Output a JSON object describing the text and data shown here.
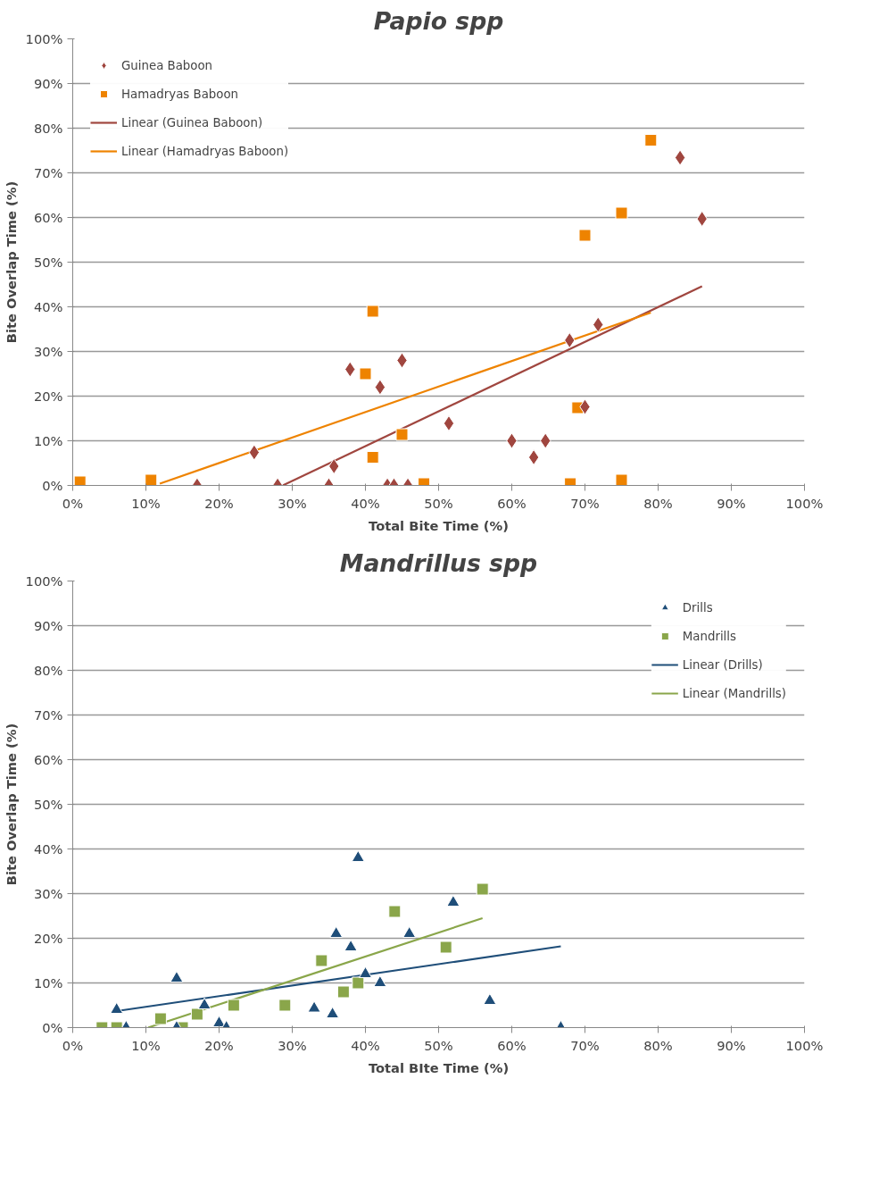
{
  "chart_data": [
    {
      "type": "scatter",
      "title": "Papio spp",
      "xlabel": "Total Bite Time (%)",
      "ylabel": "Bite Overlap Time (%)",
      "xlim": [
        0,
        100
      ],
      "ylim": [
        0,
        100
      ],
      "xticks": [
        {
          "value": 0,
          "label": "0%"
        },
        {
          "value": 10,
          "label": "10%"
        },
        {
          "value": 20,
          "label": "20%"
        },
        {
          "value": 30,
          "label": "30%"
        },
        {
          "value": 40,
          "label": "40%"
        },
        {
          "value": 50,
          "label": "50%"
        },
        {
          "value": 60,
          "label": "60%"
        },
        {
          "value": 70,
          "label": "70%"
        },
        {
          "value": 80,
          "label": "80%"
        },
        {
          "value": 90,
          "label": "90%"
        },
        {
          "value": 100,
          "label": "100%"
        }
      ],
      "yticks": [
        {
          "value": 0,
          "label": "0%"
        },
        {
          "value": 10,
          "label": "10%"
        },
        {
          "value": 20,
          "label": "20%"
        },
        {
          "value": 30,
          "label": "30%"
        },
        {
          "value": 40,
          "label": "40%"
        },
        {
          "value": 50,
          "label": "50%"
        },
        {
          "value": 60,
          "label": "60%"
        },
        {
          "value": 70,
          "label": "70%"
        },
        {
          "value": 80,
          "label": "80%"
        },
        {
          "value": 90,
          "label": "90%"
        },
        {
          "value": 100,
          "label": "100%"
        }
      ],
      "grid": "y",
      "legend": "top left",
      "series": [
        {
          "name": "Guinea Baboon",
          "type": "scatter",
          "marker": "diamond",
          "color": "#a0463f",
          "x": [
            24.8,
            17,
            28,
            35,
            35.7,
            37.9,
            42,
            45,
            43,
            43.9,
            45.8,
            51.4,
            60,
            63,
            64.6,
            67.9,
            70,
            71.8,
            83,
            86
          ],
          "values": [
            7.4,
            0,
            0,
            0,
            4.3,
            26,
            22,
            28,
            0,
            0,
            0,
            13.9,
            10,
            6.3,
            10,
            32.5,
            17.6,
            36,
            73.4,
            59.7
          ]
        },
        {
          "name": "Hamadryas Baboon",
          "type": "scatter",
          "marker": "square",
          "color": "#ee8300",
          "x": [
            1,
            10.7,
            41,
            41,
            40,
            45,
            48,
            68,
            69,
            70,
            75,
            75,
            79
          ],
          "values": [
            0.8,
            1.2,
            6.3,
            39,
            25,
            11.4,
            0.4,
            0.4,
            17.4,
            56,
            61,
            1.2,
            77.3
          ]
        },
        {
          "name": "Linear (Guinea Baboon)",
          "type": "line",
          "color": "#a0463f",
          "x": [
            28.7,
            86
          ],
          "values": [
            0,
            44.6
          ]
        },
        {
          "name": "Linear (Hamadryas Baboon)",
          "type": "line",
          "color": "#ee8300",
          "x": [
            11.9,
            79
          ],
          "values": [
            0.4,
            38.7
          ]
        }
      ]
    },
    {
      "type": "scatter",
      "title": "Mandrillus spp",
      "xlabel": "Total BIte Time (%)",
      "ylabel": "Bite Overlap Time (%)",
      "xlim": [
        0,
        100
      ],
      "ylim": [
        0,
        100
      ],
      "xticks": [
        {
          "value": 0,
          "label": "0%"
        },
        {
          "value": 10,
          "label": "10%"
        },
        {
          "value": 20,
          "label": "20%"
        },
        {
          "value": 30,
          "label": "30%"
        },
        {
          "value": 40,
          "label": "40%"
        },
        {
          "value": 50,
          "label": "50%"
        },
        {
          "value": 60,
          "label": "60%"
        },
        {
          "value": 70,
          "label": "70%"
        },
        {
          "value": 80,
          "label": "80%"
        },
        {
          "value": 90,
          "label": "90%"
        },
        {
          "value": 100,
          "label": "100%"
        }
      ],
      "yticks": [
        {
          "value": 0,
          "label": "0%"
        },
        {
          "value": 10,
          "label": "10%"
        },
        {
          "value": 20,
          "label": "20%"
        },
        {
          "value": 30,
          "label": "30%"
        },
        {
          "value": 40,
          "label": "40%"
        },
        {
          "value": 50,
          "label": "50%"
        },
        {
          "value": 60,
          "label": "60%"
        },
        {
          "value": 70,
          "label": "70%"
        },
        {
          "value": 80,
          "label": "80%"
        },
        {
          "value": 90,
          "label": "90%"
        },
        {
          "value": 100,
          "label": "100%"
        }
      ],
      "grid": "y",
      "legend": "top right",
      "series": [
        {
          "name": "Drills",
          "type": "scatter",
          "marker": "triangle",
          "color": "#1f4e79",
          "x": [
            6,
            7.3,
            14.2,
            14.2,
            18,
            20,
            21,
            33,
            35.5,
            36,
            38,
            39,
            40,
            42,
            46,
            52,
            57,
            66.7
          ],
          "values": [
            4,
            0,
            11,
            0,
            5,
            1,
            0,
            4.3,
            3,
            21,
            18,
            38,
            12,
            10,
            21,
            28,
            6,
            0
          ]
        },
        {
          "name": "Mandrills",
          "type": "scatter",
          "marker": "square",
          "color": "#8aa64a",
          "x": [
            4,
            6,
            12,
            15,
            17,
            22,
            29,
            34,
            37,
            39,
            44,
            51,
            56
          ],
          "values": [
            0,
            0,
            2,
            0,
            3,
            5,
            5,
            15,
            8,
            10,
            26,
            18,
            31
          ]
        },
        {
          "name": "Linear (Drills)",
          "type": "line",
          "color": "#1f4e79",
          "x": [
            6,
            66.7
          ],
          "values": [
            3.7,
            18.2
          ]
        },
        {
          "name": "Linear (Mandrills)",
          "type": "line",
          "color": "#8aa64a",
          "x": [
            10.3,
            56
          ],
          "values": [
            0,
            24.5
          ]
        }
      ]
    }
  ]
}
